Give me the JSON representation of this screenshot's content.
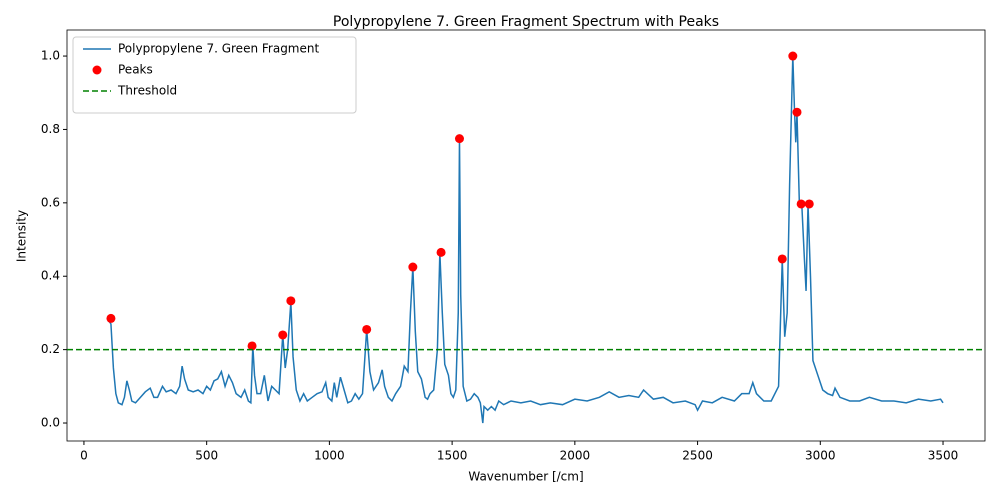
{
  "chart_data": {
    "type": "line",
    "title": "Polypropylene 7. Green Fragment Spectrum with Peaks",
    "x_label": "Wavenumber [/cm]",
    "y_label": "Intensity",
    "xlim": [
      -69,
      3671
    ],
    "ylim": [
      -0.049,
      1.071
    ],
    "xticks": [
      0,
      500,
      1000,
      1500,
      2000,
      2500,
      3000,
      3500
    ],
    "yticks": [
      {
        "value": 0,
        "label": "0.0"
      },
      0.2,
      0.4,
      0.6,
      0.8,
      {
        "value": 1,
        "label": "1.0"
      }
    ],
    "legend": "upper left",
    "series": [
      {
        "name": "Polypropylene 7. Green Fragment",
        "color": "#1f77b4",
        "type": "line",
        "x": [
          100,
          110,
          120,
          130,
          140,
          155,
          165,
          175,
          185,
          195,
          210,
          230,
          250,
          270,
          285,
          300,
          320,
          335,
          355,
          375,
          390,
          400,
          410,
          425,
          445,
          465,
          485,
          500,
          515,
          530,
          545,
          560,
          575,
          590,
          605,
          620,
          640,
          655,
          670,
          680,
          688,
          695,
          705,
          720,
          735,
          750,
          765,
          780,
          795,
          810,
          820,
          830,
          843,
          852,
          865,
          880,
          895,
          910,
          930,
          950,
          970,
          985,
          995,
          1010,
          1020,
          1030,
          1045,
          1060,
          1075,
          1090,
          1105,
          1120,
          1135,
          1152,
          1165,
          1180,
          1200,
          1215,
          1225,
          1240,
          1255,
          1270,
          1290,
          1305,
          1320,
          1330,
          1340,
          1350,
          1360,
          1375,
          1390,
          1400,
          1410,
          1425,
          1440,
          1450,
          1460,
          1470,
          1485,
          1495,
          1505,
          1515,
          1525,
          1530,
          1535,
          1545,
          1560,
          1575,
          1590,
          1605,
          1615,
          1625,
          1630,
          1645,
          1660,
          1675,
          1690,
          1710,
          1740,
          1780,
          1820,
          1860,
          1900,
          1950,
          2000,
          2050,
          2100,
          2140,
          2180,
          2220,
          2260,
          2280,
          2320,
          2360,
          2400,
          2450,
          2490,
          2500,
          2520,
          2560,
          2600,
          2650,
          2680,
          2710,
          2725,
          2740,
          2770,
          2800,
          2830,
          2845,
          2855,
          2865,
          2875,
          2888,
          2895,
          2900,
          2905,
          2915,
          2925,
          2935,
          2942,
          2950,
          2960,
          2970,
          2990,
          3010,
          3030,
          3050,
          3060,
          3080,
          3120,
          3160,
          3200,
          3250,
          3300,
          3350,
          3400,
          3450,
          3490,
          3500
        ],
        "values": [
          0.28,
          0.27,
          0.15,
          0.08,
          0.055,
          0.05,
          0.07,
          0.115,
          0.09,
          0.06,
          0.055,
          0.07,
          0.085,
          0.095,
          0.07,
          0.07,
          0.1,
          0.085,
          0.09,
          0.08,
          0.1,
          0.155,
          0.12,
          0.09,
          0.085,
          0.09,
          0.08,
          0.1,
          0.09,
          0.115,
          0.12,
          0.14,
          0.1,
          0.13,
          0.11,
          0.08,
          0.07,
          0.09,
          0.06,
          0.055,
          0.21,
          0.13,
          0.08,
          0.08,
          0.13,
          0.06,
          0.1,
          0.09,
          0.08,
          0.24,
          0.15,
          0.2,
          0.33,
          0.18,
          0.09,
          0.06,
          0.08,
          0.06,
          0.07,
          0.08,
          0.085,
          0.11,
          0.07,
          0.06,
          0.11,
          0.07,
          0.125,
          0.09,
          0.055,
          0.06,
          0.08,
          0.065,
          0.08,
          0.255,
          0.14,
          0.09,
          0.11,
          0.145,
          0.1,
          0.07,
          0.06,
          0.08,
          0.1,
          0.155,
          0.14,
          0.3,
          0.425,
          0.25,
          0.14,
          0.12,
          0.07,
          0.065,
          0.08,
          0.09,
          0.2,
          0.465,
          0.3,
          0.16,
          0.13,
          0.08,
          0.07,
          0.09,
          0.3,
          0.775,
          0.35,
          0.1,
          0.06,
          0.065,
          0.08,
          0.07,
          0.055,
          0.0,
          0.045,
          0.035,
          0.045,
          0.035,
          0.06,
          0.05,
          0.06,
          0.055,
          0.06,
          0.05,
          0.055,
          0.05,
          0.065,
          0.06,
          0.07,
          0.085,
          0.07,
          0.075,
          0.07,
          0.09,
          0.065,
          0.07,
          0.055,
          0.06,
          0.05,
          0.035,
          0.06,
          0.055,
          0.07,
          0.06,
          0.08,
          0.08,
          0.11,
          0.08,
          0.06,
          0.06,
          0.1,
          0.445,
          0.235,
          0.3,
          0.65,
          1.0,
          0.85,
          0.765,
          0.845,
          0.59,
          0.59,
          0.45,
          0.36,
          0.595,
          0.4,
          0.17,
          0.13,
          0.09,
          0.08,
          0.075,
          0.095,
          0.07,
          0.06,
          0.06,
          0.07,
          0.06,
          0.06,
          0.055,
          0.065,
          0.06,
          0.065,
          0.055
        ]
      },
      {
        "name": "Peaks",
        "color": "#ff0000",
        "type": "scatter",
        "x": [
          110,
          685,
          810,
          843,
          1152,
          1340,
          1455,
          1530,
          2845,
          2888,
          2905,
          2922,
          2955
        ],
        "values": [
          0.285,
          0.21,
          0.24,
          0.333,
          0.255,
          0.425,
          0.465,
          0.775,
          0.447,
          1.0,
          0.847,
          0.597,
          0.597
        ]
      }
    ],
    "threshold": {
      "name": "Threshold",
      "value": 0.2,
      "color": "#008000",
      "style": "dashed"
    }
  }
}
